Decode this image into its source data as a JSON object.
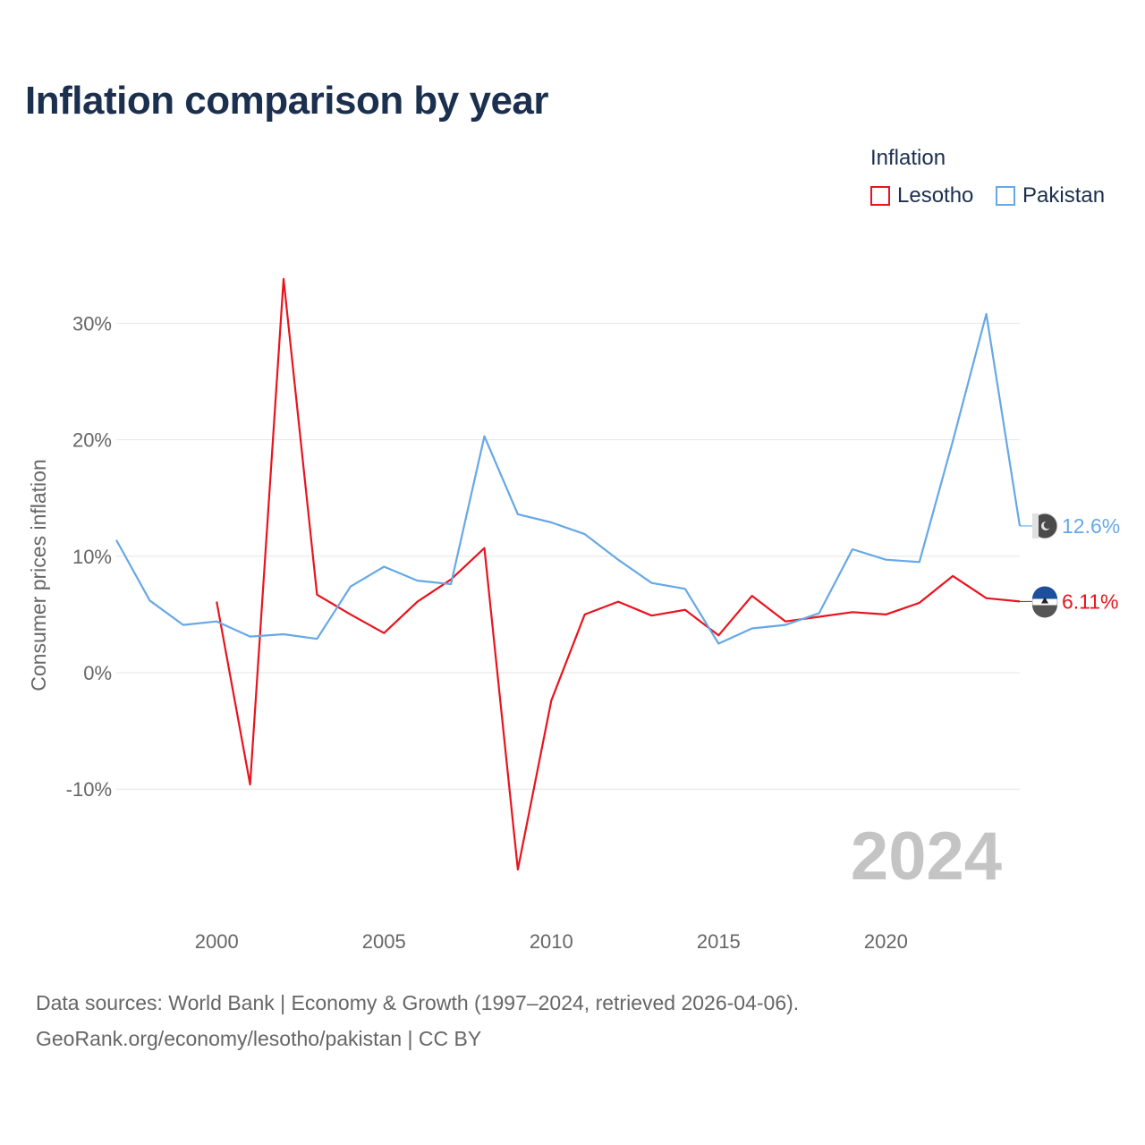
{
  "title": "Inflation comparison by year",
  "legend": {
    "title": "Inflation",
    "items": [
      {
        "label": "Lesotho",
        "color": "#e8141d"
      },
      {
        "label": "Pakistan",
        "color": "#66a8e6"
      }
    ]
  },
  "source": {
    "line1": "Data sources: World Bank | Economy & Growth (1997–2024, retrieved 2026-04-06).",
    "line2": "GeoRank.org/economy/lesotho/pakistan | CC BY"
  },
  "chart_data": {
    "type": "line",
    "title": "Inflation comparison by year",
    "ylabel": "Consumer prices inflation",
    "xlabel": "",
    "current_year": "2024",
    "xlim": [
      1997,
      2024
    ],
    "ylim": [
      -20,
      35
    ],
    "x_ticks": [
      2000,
      2005,
      2010,
      2015,
      2020
    ],
    "y_ticks": [
      {
        "value": 30,
        "label": "30%"
      },
      {
        "value": 20,
        "label": "20%"
      },
      {
        "value": 10,
        "label": "10%"
      },
      {
        "value": 0,
        "label": "0%"
      },
      {
        "value": -10,
        "label": "-10%"
      }
    ],
    "series": [
      {
        "name": "Lesotho",
        "color": "#e8141d",
        "end_label": "6.11%",
        "points": [
          [
            2000,
            6.1
          ],
          [
            2001,
            -9.6
          ],
          [
            2002,
            33.8
          ],
          [
            2003,
            6.7
          ],
          [
            2004,
            5.0
          ],
          [
            2005,
            3.4
          ],
          [
            2006,
            6.1
          ],
          [
            2007,
            8.0
          ],
          [
            2008,
            10.7
          ],
          [
            2009,
            -16.9
          ],
          [
            2010,
            -2.4
          ],
          [
            2011,
            5.0
          ],
          [
            2012,
            6.1
          ],
          [
            2013,
            4.9
          ],
          [
            2014,
            5.4
          ],
          [
            2015,
            3.2
          ],
          [
            2016,
            6.6
          ],
          [
            2017,
            4.4
          ],
          [
            2018,
            4.8
          ],
          [
            2019,
            5.2
          ],
          [
            2020,
            5.0
          ],
          [
            2021,
            6.0
          ],
          [
            2022,
            8.3
          ],
          [
            2023,
            6.4
          ],
          [
            2024,
            6.11
          ]
        ]
      },
      {
        "name": "Pakistan",
        "color": "#66a8e6",
        "end_label": "12.6%",
        "points": [
          [
            1997,
            11.4
          ],
          [
            1998,
            6.2
          ],
          [
            1999,
            4.1
          ],
          [
            2000,
            4.4
          ],
          [
            2001,
            3.1
          ],
          [
            2002,
            3.3
          ],
          [
            2003,
            2.9
          ],
          [
            2004,
            7.4
          ],
          [
            2005,
            9.1
          ],
          [
            2006,
            7.9
          ],
          [
            2007,
            7.6
          ],
          [
            2008,
            20.3
          ],
          [
            2009,
            13.6
          ],
          [
            2010,
            12.9
          ],
          [
            2011,
            11.9
          ],
          [
            2012,
            9.7
          ],
          [
            2013,
            7.7
          ],
          [
            2014,
            7.2
          ],
          [
            2015,
            2.5
          ],
          [
            2016,
            3.8
          ],
          [
            2017,
            4.1
          ],
          [
            2018,
            5.1
          ],
          [
            2019,
            10.6
          ],
          [
            2020,
            9.7
          ],
          [
            2021,
            9.5
          ],
          [
            2022,
            19.9
          ],
          [
            2023,
            30.8
          ],
          [
            2024,
            12.6
          ]
        ]
      }
    ]
  }
}
